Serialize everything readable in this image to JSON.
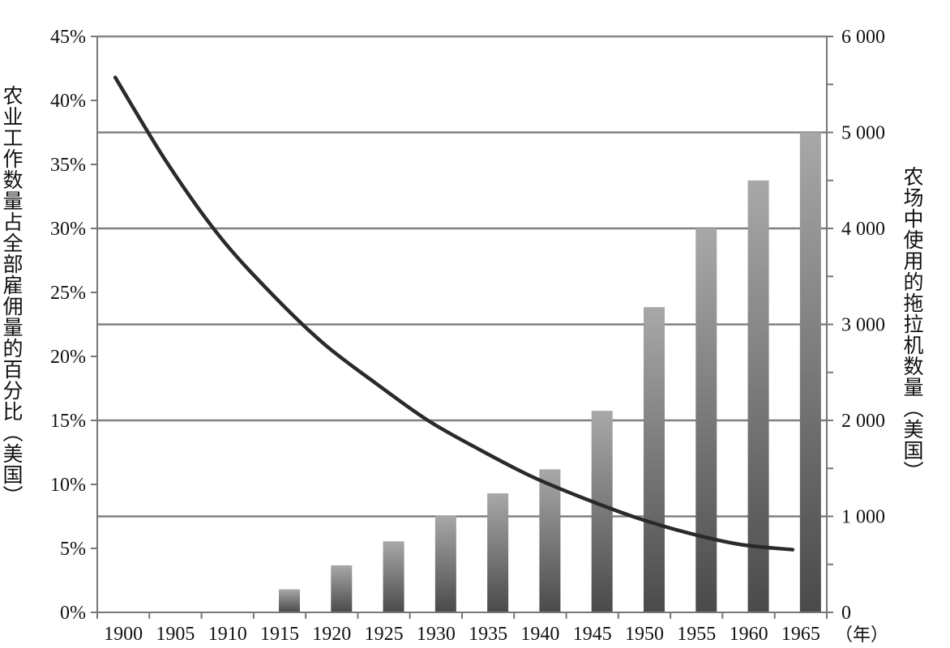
{
  "chart_data": {
    "type": "bar+line",
    "x": [
      "1900",
      "1905",
      "1910",
      "1915",
      "1920",
      "1925",
      "1930",
      "1935",
      "1940",
      "1945",
      "1950",
      "1955",
      "1960",
      "1965"
    ],
    "xunit": "（年）",
    "ylabel_left": "农业工作数量占全部雇佣量的百分比（美国）",
    "ylabel_right": "农场中使用的拖拉机数量（美国）",
    "left_axis": {
      "min": 0,
      "max": 45,
      "step": 5,
      "ticks": [
        "0%",
        "5%",
        "10%",
        "15%",
        "20%",
        "25%",
        "30%",
        "35%",
        "40%",
        "45%"
      ]
    },
    "right_axis": {
      "min": 0,
      "max": 6000,
      "step": 1000,
      "ticks": [
        "0",
        "1 000",
        "2 000",
        "3 000",
        "4 000",
        "5 000",
        "6 000"
      ]
    },
    "bar_series": {
      "axis": "right",
      "values": [
        0,
        0,
        0,
        240,
        490,
        740,
        1010,
        1240,
        1490,
        2100,
        3180,
        4000,
        4500,
        5000
      ]
    },
    "line_series": {
      "axis": "left",
      "values": [
        41.8,
        35.1,
        29.4,
        24.9,
        21.0,
        17.9,
        15.0,
        12.7,
        10.6,
        8.9,
        7.4,
        6.2,
        5.3,
        4.9
      ]
    },
    "grid": true
  }
}
